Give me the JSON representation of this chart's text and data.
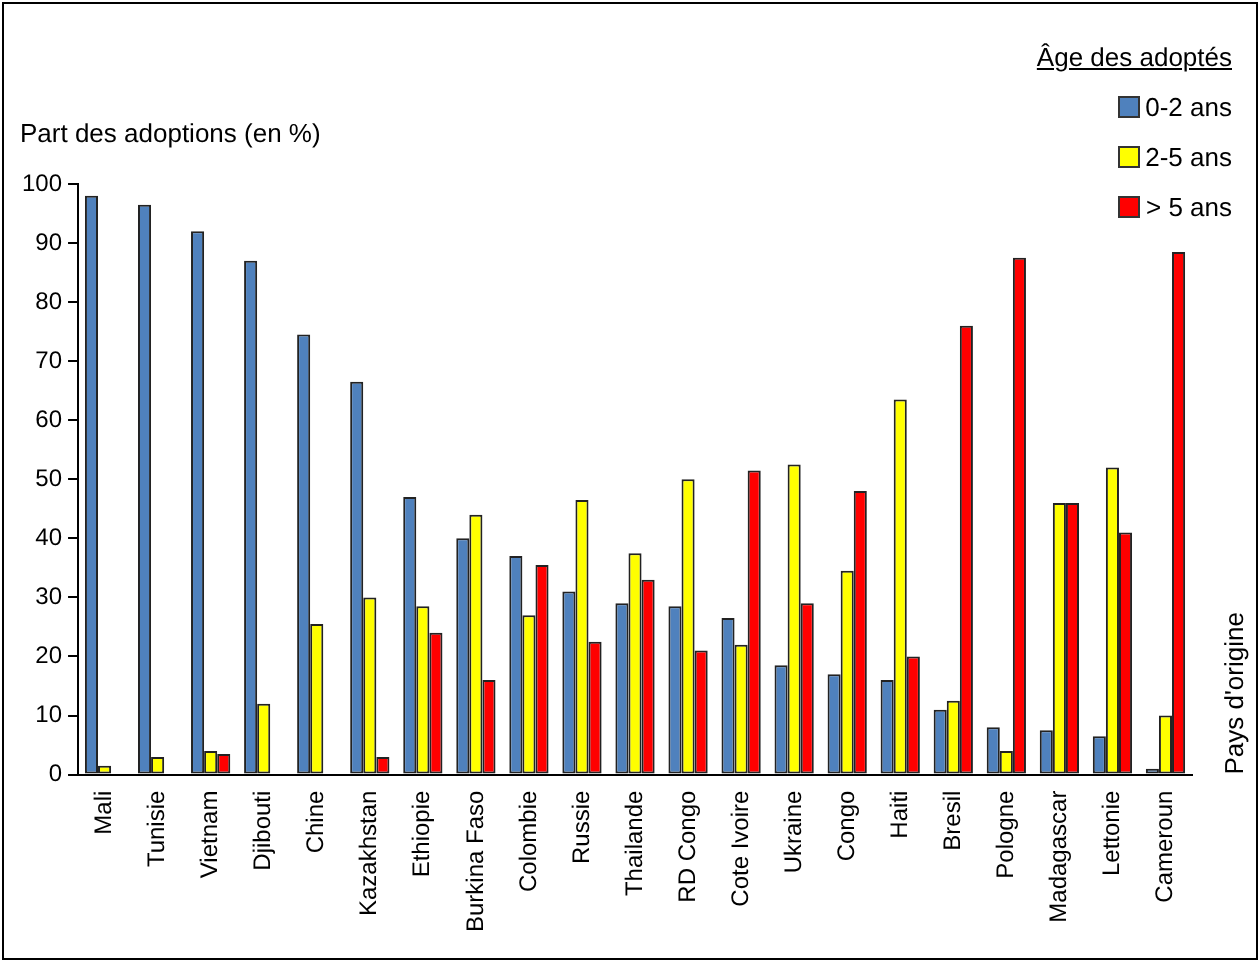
{
  "chart_data": {
    "type": "bar",
    "ylabel": "Part des adoptions (en %)",
    "annotations": [
      "Pays d'origine"
    ],
    "legend_title": "Âge des adoptés",
    "legend": "top right",
    "grid": false,
    "categories": [
      "Mali",
      "Tunisie",
      "Vietnam",
      "Djibouti",
      "Chine",
      "Kazakhstan",
      "Ethiopie",
      "Burkina Faso",
      "Colombie",
      "Russie",
      "Thailande",
      "RD Congo",
      "Cote Ivoire",
      "Ukraine",
      "Congo",
      "Haiti",
      "Bresil",
      "Pologne",
      "Madagascar",
      "Lettonie",
      "Cameroun"
    ],
    "ylim": [
      0,
      100
    ],
    "yticks": [
      0,
      10,
      20,
      30,
      40,
      50,
      60,
      70,
      80,
      90,
      100
    ],
    "series": [
      {
        "name": "0-2 ans",
        "color": "#4f81bd",
        "values": [
          98,
          96.5,
          92,
          87,
          74.5,
          66.5,
          47,
          40,
          37,
          31,
          29,
          28.5,
          26.5,
          18.5,
          17,
          16,
          11,
          8,
          7.5,
          6.5,
          1
        ]
      },
      {
        "name": "2-5 ans",
        "color": "#ffff00",
        "values": [
          1.5,
          3,
          4,
          12,
          25.5,
          30,
          28.5,
          44,
          27,
          46.5,
          37.5,
          50,
          22,
          52.5,
          34.5,
          63.5,
          12.5,
          4,
          46,
          52,
          10
        ]
      },
      {
        "name": "> 5 ans",
        "color": "#ff0000",
        "values": [
          0,
          0,
          3.5,
          0,
          0,
          3,
          24,
          16,
          35.5,
          22.5,
          33,
          21,
          51.5,
          29,
          48,
          20,
          76,
          87.5,
          46,
          41,
          88.5
        ]
      }
    ]
  }
}
